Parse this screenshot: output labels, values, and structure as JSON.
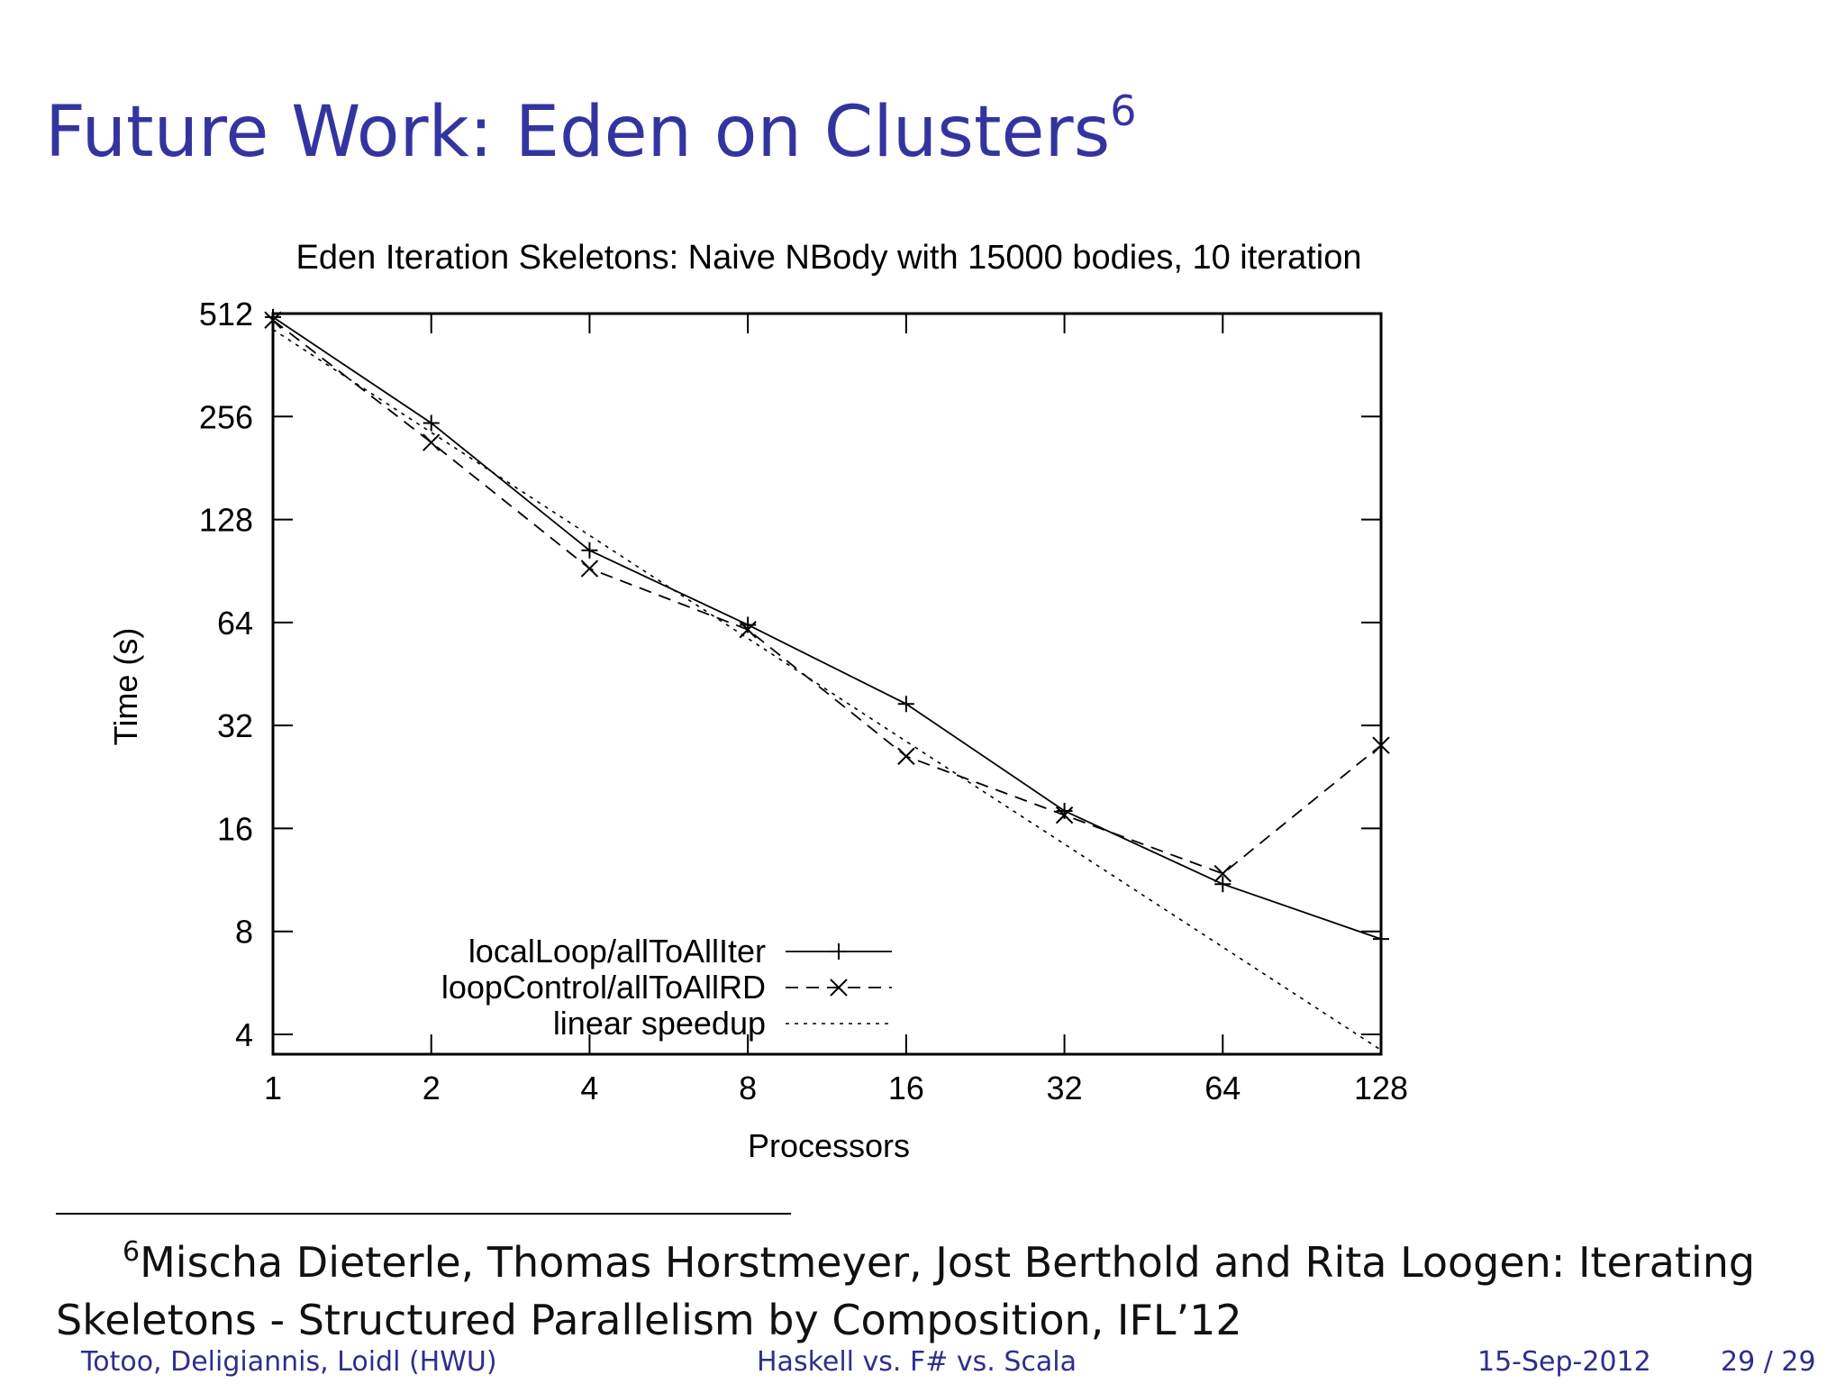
{
  "slide": {
    "title": "Future Work: Eden on Clusters",
    "title_mark": "6"
  },
  "footnote": {
    "mark": "6",
    "line1": "Mischa Dieterle, Thomas Horstmeyer, Jost Berthold and Rita Loogen: Iterating",
    "line2": "Skeletons - Structured Parallelism by Composition, IFL’12"
  },
  "footer": {
    "authors": "Totoo, Deligiannis, Loidl  (HWU)",
    "talk": "Haskell vs. F# vs. Scala",
    "date": "15-Sep-2012",
    "page": "29 / 29"
  },
  "colors": {
    "title": "#3434a0",
    "footer": "#2e2e8e",
    "plot": "#000000"
  },
  "chart_data": {
    "type": "line",
    "title": "Eden Iteration Skeletons: Naive NBody with 15000 bodies, 10 iteration",
    "xlabel": "Processors",
    "ylabel": "Time (s)",
    "xscale": "log2",
    "yscale": "log2",
    "xlim": [
      1,
      128
    ],
    "ylim": [
      3.5,
      512
    ],
    "x": [
      1,
      2,
      4,
      8,
      16,
      32,
      64,
      128
    ],
    "xticks": [
      "1",
      "2",
      "4",
      "8",
      "16",
      "32",
      "64",
      "128"
    ],
    "yticks": [
      512,
      256,
      128,
      64,
      32,
      16,
      8,
      4
    ],
    "legend_position": "bottom-left",
    "grid": false,
    "series": [
      {
        "name": "localLoop/allToAllIter",
        "style": "solid",
        "marker": "plus",
        "values": [
          500,
          245,
          104,
          63,
          37,
          18,
          11,
          7.6
        ]
      },
      {
        "name": "loopControl/allToAllRD",
        "style": "dashed",
        "marker": "cross",
        "values": [
          490,
          215,
          92,
          61,
          26,
          17.5,
          11.8,
          28
        ]
      },
      {
        "name": "linear speedup",
        "style": "dotted",
        "marker": "none",
        "values": [
          460,
          230,
          115,
          57.5,
          28.75,
          14.4,
          7.2,
          3.6
        ]
      }
    ]
  }
}
